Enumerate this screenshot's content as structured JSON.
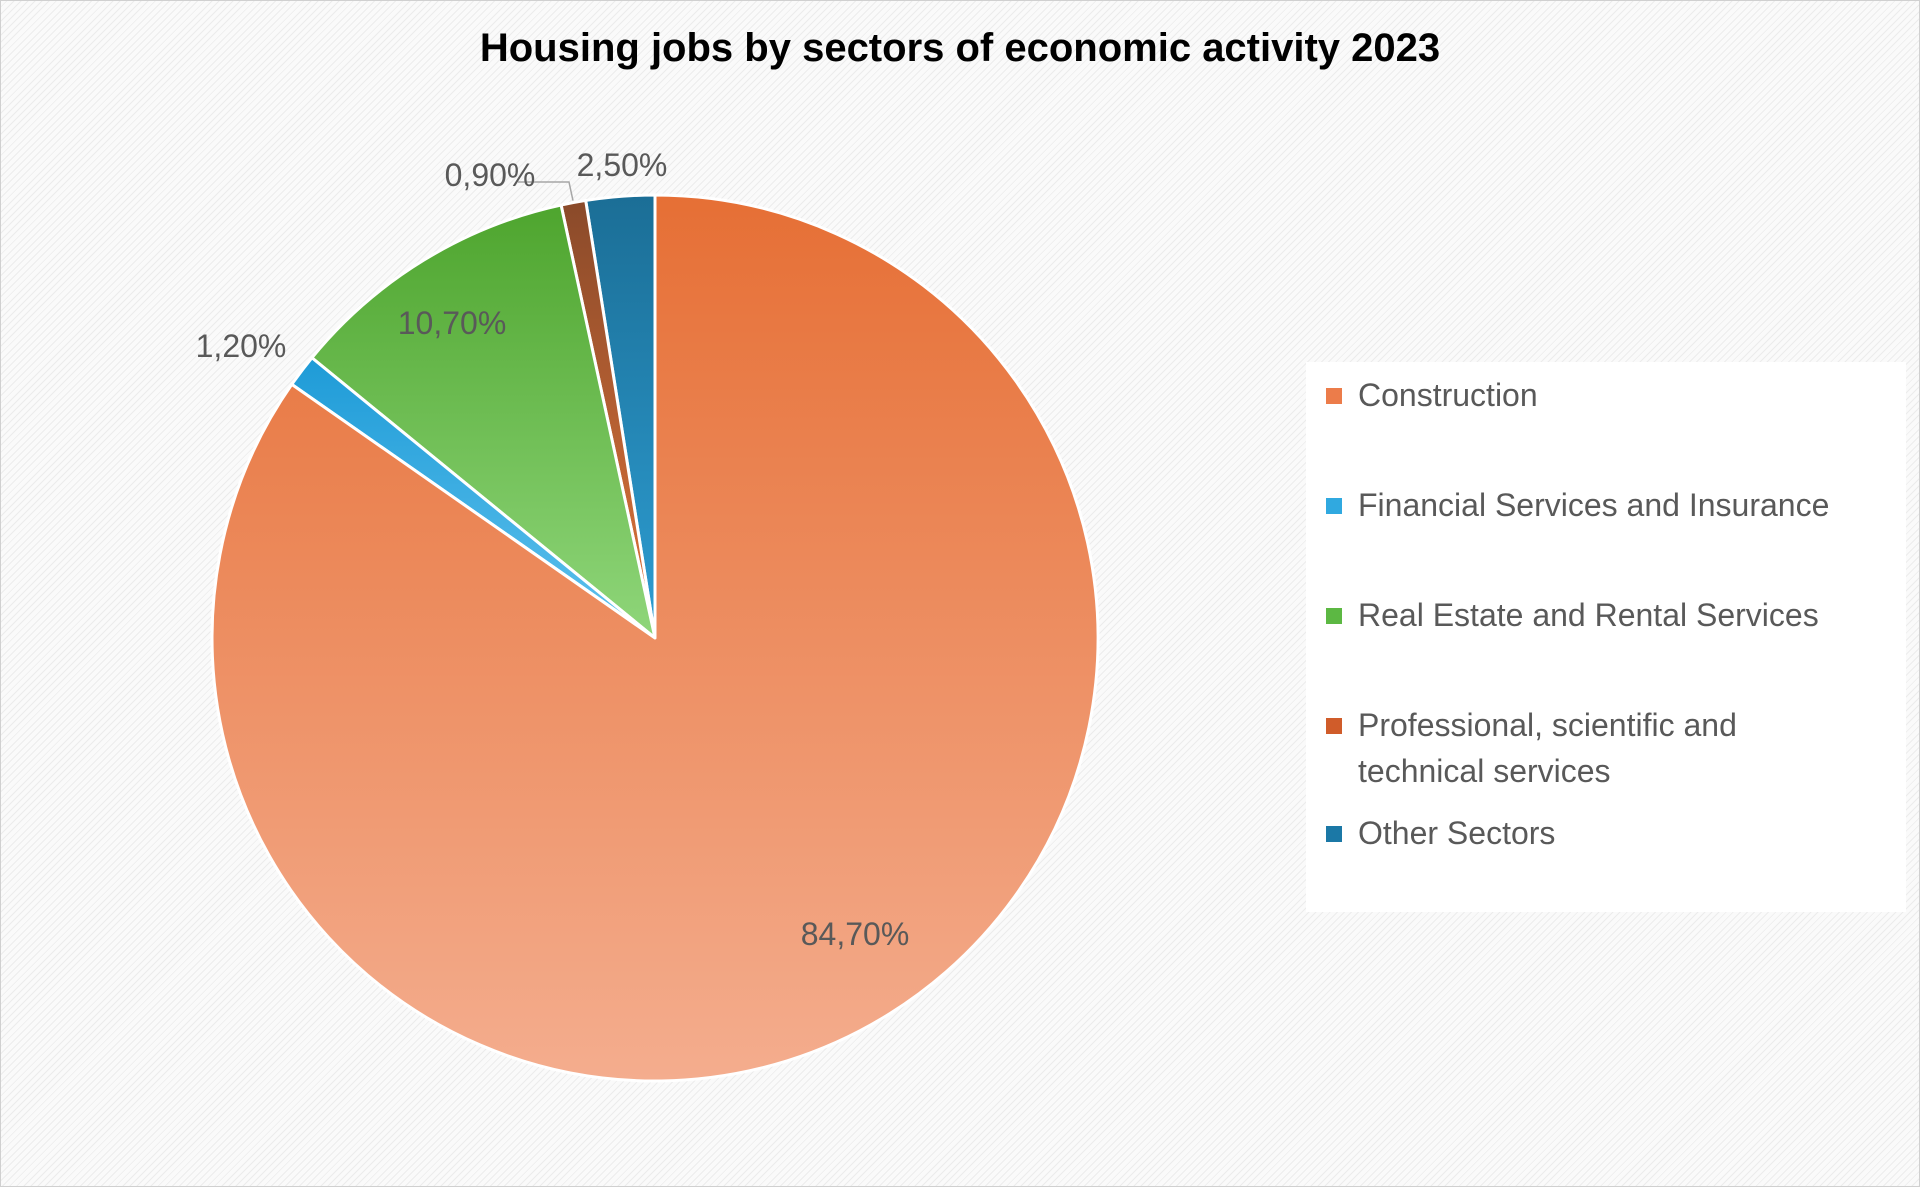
{
  "chart_data": {
    "type": "pie",
    "title": "Housing jobs by sectors of economic activity 2023",
    "slices": [
      {
        "name": "Other Sectors",
        "value": 2.5,
        "label": "2,50%",
        "color_top": "#1b6e96",
        "color_bottom": "#2d9dd2"
      },
      {
        "name": "Professional, scientific and technical services",
        "value": 0.9,
        "label": "0,90%",
        "color_top": "#8a4a2a",
        "color_bottom": "#e0743a"
      },
      {
        "name": "Real Estate and Rental Services",
        "value": 10.7,
        "label": "10,70%",
        "color_top": "#4ea52e",
        "color_bottom": "#8fd67a"
      },
      {
        "name": "Financial Services and Insurance",
        "value": 1.2,
        "label": "1,20%",
        "color_top": "#1e9bd7",
        "color_bottom": "#5fc2ee"
      },
      {
        "name": "Construction",
        "value": 84.7,
        "label": "84,70%",
        "color_top": "#e66f35",
        "color_bottom": "#f4ad8e"
      }
    ],
    "legend_placement": "right",
    "legend": [
      {
        "label": "Construction",
        "color": "#ec7c4a"
      },
      {
        "label": "Financial Services and Insurance",
        "color": "#30a9e0"
      },
      {
        "label": "Real Estate and Rental Services",
        "color": "#5cb843"
      },
      {
        "label": "Professional, scientific and technical services",
        "color": "#d05c2a"
      },
      {
        "label": "Other Sectors",
        "color": "#1b78a6"
      }
    ]
  }
}
